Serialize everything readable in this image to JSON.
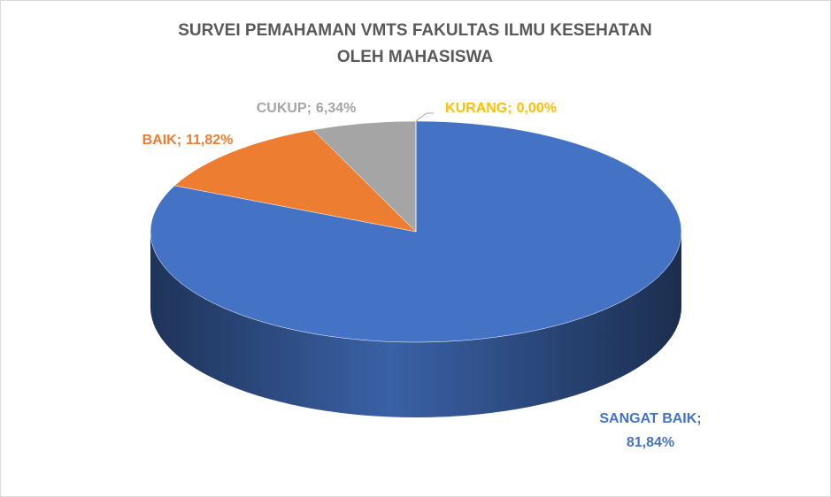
{
  "chart_data": {
    "type": "pie3d",
    "title": [
      "SURVEI PEMAHAMAN VMTS FAKULTAS ILMU KESEHATAN",
      "OLEH MAHASISWA"
    ],
    "categories": [
      "SANGAT BAIK",
      "BAIK",
      "CUKUP",
      "KURANG"
    ],
    "values": [
      81.84,
      11.82,
      6.34,
      0.0
    ],
    "value_labels": [
      "81,84%",
      "11,82%",
      "6,34%",
      "0,00%"
    ],
    "label_separator": ";",
    "colors": [
      "#4472c4",
      "#ed7d31",
      "#a5a5a5",
      "#ffc000"
    ]
  }
}
